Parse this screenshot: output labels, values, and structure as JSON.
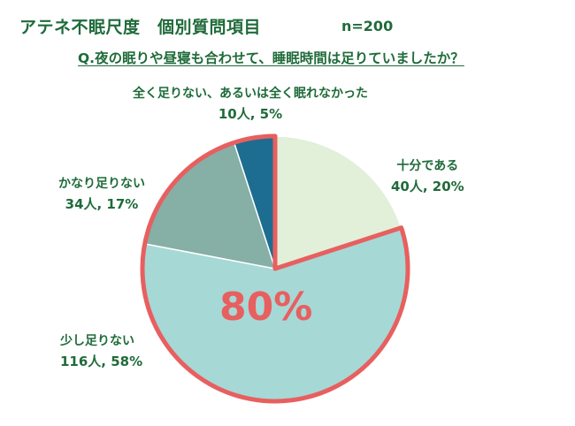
{
  "header": {
    "title": "アテネ不眠尺度　個別質問項目",
    "sample_size": "n=200",
    "question": "Q.夜の眠りや昼寝も合わせて、睡眠時間は足りていましたか？"
  },
  "callout": {
    "text": "80%"
  },
  "colors": {
    "text_green": "#1f6b3a",
    "highlight_red": "#e85f5f"
  },
  "chart_data": {
    "type": "pie",
    "n": 200,
    "slices": [
      {
        "name": "十分である",
        "count": 40,
        "percent": 20,
        "color": "#e2efd9",
        "label": "十分である",
        "value_label": "40人, 20%"
      },
      {
        "name": "少し足りない",
        "count": 116,
        "percent": 58,
        "color": "#a6d8d6",
        "label": "少し足りない",
        "value_label": "116人, 58%"
      },
      {
        "name": "かなり足りない",
        "count": 34,
        "percent": 17,
        "color": "#86afa6",
        "label": "かなり足りない",
        "value_label": "34人, 17%"
      },
      {
        "name": "全く足りない、あるいは全く眠れなかった",
        "count": 10,
        "percent": 5,
        "color": "#1d6d91",
        "label": "全く足りない、あるいは全く眠れなかった",
        "value_label": "10人, 5%"
      }
    ],
    "highlighted": [
      "少し足りない",
      "かなり足りない",
      "全く足りない、あるいは全く眠れなかった"
    ],
    "highlight_total_label": "80%"
  }
}
